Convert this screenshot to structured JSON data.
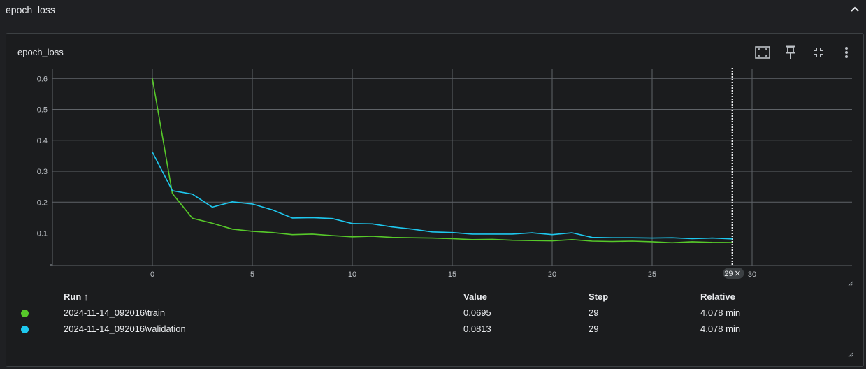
{
  "section": {
    "title": "epoch_loss"
  },
  "card": {
    "title": "epoch_loss"
  },
  "icons": {
    "collapse": "chevron-up-icon",
    "fit_domain": "fit-to-data-icon",
    "pin": "pin-icon",
    "exit_fullscreen": "collapse-arrows-icon",
    "more": "more-vert-icon"
  },
  "colors": {
    "train": "#57c92a",
    "validation": "#1ec8ef",
    "grid": "#5f6368"
  },
  "chart_data": {
    "type": "line",
    "xlabel": "",
    "ylabel": "",
    "xlim": [
      -5,
      35
    ],
    "ylim": [
      -0.005,
      0.63
    ],
    "x_ticks": [
      0,
      5,
      10,
      15,
      20,
      25,
      30
    ],
    "y_ticks": [
      0.1,
      0.2,
      0.3,
      0.4,
      0.5,
      0.6
    ],
    "grid": true,
    "hover_step": 29,
    "hover_label": "29",
    "series": [
      {
        "key": "train",
        "values": [
          0.6,
          0.228,
          0.148,
          0.132,
          0.113,
          0.106,
          0.102,
          0.095,
          0.097,
          0.092,
          0.088,
          0.09,
          0.086,
          0.085,
          0.084,
          0.082,
          0.079,
          0.08,
          0.077,
          0.076,
          0.075,
          0.079,
          0.074,
          0.073,
          0.074,
          0.072,
          0.069,
          0.072,
          0.07,
          0.0695
        ]
      },
      {
        "key": "validation",
        "values": [
          0.362,
          0.237,
          0.226,
          0.184,
          0.201,
          0.194,
          0.175,
          0.149,
          0.15,
          0.147,
          0.131,
          0.13,
          0.12,
          0.113,
          0.104,
          0.102,
          0.097,
          0.097,
          0.097,
          0.101,
          0.095,
          0.101,
          0.086,
          0.085,
          0.085,
          0.084,
          0.085,
          0.082,
          0.084,
          0.0813
        ]
      }
    ]
  },
  "table": {
    "headers": {
      "run": "Run ↑",
      "value": "Value",
      "step": "Step",
      "relative": "Relative"
    },
    "rows": [
      {
        "key": "train",
        "run": "2024-11-14_092016\\train",
        "value": "0.0695",
        "step": "29",
        "relative": "4.078 min"
      },
      {
        "key": "validation",
        "run": "2024-11-14_092016\\validation",
        "value": "0.0813",
        "step": "29",
        "relative": "4.078 min"
      }
    ]
  }
}
